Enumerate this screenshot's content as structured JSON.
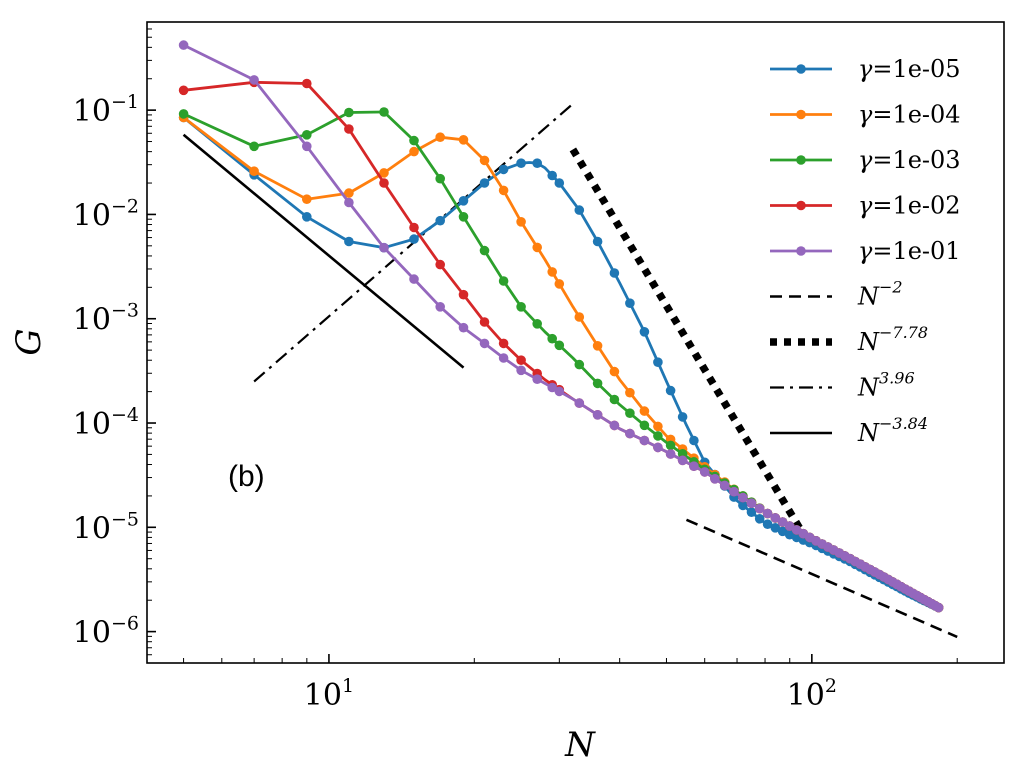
{
  "chart_data": {
    "type": "line",
    "xscale": "log",
    "yscale": "log",
    "xlabel": "N",
    "ylabel": "G",
    "xlim": [
      4.2,
      250
    ],
    "ylim": [
      5e-07,
      0.7
    ],
    "x_ticks": [
      {
        "value": 10,
        "base": "10",
        "exp": "1"
      },
      {
        "value": 100,
        "base": "10",
        "exp": "2"
      }
    ],
    "y_ticks": [
      {
        "value": 0.1,
        "base": "10",
        "exp": "−1"
      },
      {
        "value": 0.01,
        "base": "10",
        "exp": "−2"
      },
      {
        "value": 0.001,
        "base": "10",
        "exp": "−3"
      },
      {
        "value": 0.0001,
        "base": "10",
        "exp": "−4"
      },
      {
        "value": 1e-05,
        "base": "10",
        "exp": "−5"
      },
      {
        "value": 1e-06,
        "base": "10",
        "exp": "−6"
      }
    ],
    "annotation": "(b)",
    "series": [
      {
        "name": "γ=1e-05",
        "label_symbol": "γ",
        "label_value": "=1e-05",
        "color": "#1f77b4",
        "points": [
          [
            5,
            0.085
          ],
          [
            7,
            0.024
          ],
          [
            9,
            0.0095
          ],
          [
            11,
            0.0055
          ],
          [
            13,
            0.0048
          ],
          [
            15,
            0.0058
          ],
          [
            17,
            0.0087
          ],
          [
            19,
            0.0135
          ],
          [
            21,
            0.02
          ],
          [
            23,
            0.027
          ],
          [
            25,
            0.031
          ],
          [
            26,
            0.0315
          ],
          [
            27,
            0.031
          ],
          [
            28,
            0.028
          ],
          [
            30,
            0.02
          ],
          [
            33,
            0.011
          ],
          [
            36,
            0.0055
          ],
          [
            40,
            0.0022
          ],
          [
            45,
            0.00075
          ],
          [
            50,
            0.00025
          ],
          [
            55,
            9.5e-05
          ],
          [
            60,
            4.2e-05
          ],
          [
            70,
            1.8e-05
          ],
          [
            80,
            1.1e-05
          ],
          [
            90,
            8.5e-06
          ],
          [
            100,
            7e-06
          ],
          [
            120,
            4.7e-06
          ],
          [
            140,
            3.2e-06
          ],
          [
            160,
            2.3e-06
          ],
          [
            183,
            1.7e-06
          ]
        ]
      },
      {
        "name": "γ=1e-04",
        "label_symbol": "γ",
        "label_value": "=1e-04",
        "color": "#ff7f0e",
        "points": [
          [
            5,
            0.085
          ],
          [
            7,
            0.026
          ],
          [
            9,
            0.014
          ],
          [
            11,
            0.016
          ],
          [
            13,
            0.025
          ],
          [
            15,
            0.04
          ],
          [
            17,
            0.055
          ],
          [
            19,
            0.052
          ],
          [
            21,
            0.033
          ],
          [
            23,
            0.017
          ],
          [
            25,
            0.0085
          ],
          [
            28,
            0.0037
          ],
          [
            32,
            0.0013
          ],
          [
            36,
            0.00055
          ],
          [
            40,
            0.00026
          ],
          [
            45,
            0.00013
          ],
          [
            50,
            7.5e-05
          ],
          [
            60,
            3.8e-05
          ],
          [
            70,
            2.2e-05
          ],
          [
            80,
            1.4e-05
          ],
          [
            100,
            7.8e-06
          ],
          [
            120,
            5e-06
          ],
          [
            140,
            3.4e-06
          ],
          [
            160,
            2.4e-06
          ],
          [
            183,
            1.7e-06
          ]
        ]
      },
      {
        "name": "γ=1e-03",
        "label_symbol": "γ",
        "label_value": "=1e-03",
        "color": "#2ca02c",
        "points": [
          [
            5,
            0.092
          ],
          [
            7,
            0.045
          ],
          [
            9,
            0.058
          ],
          [
            11,
            0.095
          ],
          [
            13,
            0.096
          ],
          [
            15,
            0.051
          ],
          [
            17,
            0.022
          ],
          [
            19,
            0.0095
          ],
          [
            21,
            0.0045
          ],
          [
            23,
            0.0023
          ],
          [
            25,
            0.0013
          ],
          [
            28,
            0.00075
          ],
          [
            32,
            0.00042
          ],
          [
            36,
            0.00024
          ],
          [
            40,
            0.00015
          ],
          [
            45,
            9.5e-05
          ],
          [
            50,
            6.5e-05
          ],
          [
            60,
            3.6e-05
          ],
          [
            70,
            2.2e-05
          ],
          [
            80,
            1.4e-05
          ],
          [
            100,
            7.8e-06
          ],
          [
            120,
            5e-06
          ],
          [
            140,
            3.4e-06
          ],
          [
            160,
            2.4e-06
          ],
          [
            183,
            1.7e-06
          ]
        ]
      },
      {
        "name": "γ=1e-02",
        "label_symbol": "γ",
        "label_value": "=1e-02",
        "color": "#d62728",
        "points": [
          [
            5,
            0.155
          ],
          [
            7,
            0.185
          ],
          [
            9,
            0.18
          ],
          [
            11,
            0.066
          ],
          [
            13,
            0.02
          ],
          [
            15,
            0.0075
          ],
          [
            17,
            0.0033
          ],
          [
            19,
            0.0017
          ],
          [
            21,
            0.00093
          ],
          [
            23,
            0.00058
          ],
          [
            25,
            0.0004
          ],
          [
            28,
            0.00026
          ],
          [
            32,
            0.00017
          ],
          [
            36,
            0.00012
          ],
          [
            40,
            8.8e-05
          ],
          [
            45,
            6.8e-05
          ],
          [
            50,
            5.3e-05
          ],
          [
            60,
            3.4e-05
          ],
          [
            70,
            2.1e-05
          ],
          [
            80,
            1.4e-05
          ],
          [
            100,
            7.8e-06
          ],
          [
            120,
            5e-06
          ],
          [
            140,
            3.4e-06
          ],
          [
            160,
            2.4e-06
          ],
          [
            183,
            1.7e-06
          ]
        ]
      },
      {
        "name": "γ=1e-01",
        "label_symbol": "γ",
        "label_value": "=1e-01",
        "color": "#9467bd",
        "points": [
          [
            5,
            0.42
          ],
          [
            7,
            0.195
          ],
          [
            9,
            0.045
          ],
          [
            11,
            0.013
          ],
          [
            13,
            0.0048
          ],
          [
            15,
            0.0024
          ],
          [
            17,
            0.0013
          ],
          [
            19,
            0.00082
          ],
          [
            21,
            0.00058
          ],
          [
            23,
            0.00042
          ],
          [
            25,
            0.00032
          ],
          [
            28,
            0.00024
          ],
          [
            32,
            0.00017
          ],
          [
            36,
            0.00012
          ],
          [
            40,
            8.8e-05
          ],
          [
            45,
            6.8e-05
          ],
          [
            50,
            5.3e-05
          ],
          [
            60,
            3.4e-05
          ],
          [
            70,
            2.1e-05
          ],
          [
            80,
            1.4e-05
          ],
          [
            100,
            7.8e-06
          ],
          [
            120,
            5e-06
          ],
          [
            140,
            3.4e-06
          ],
          [
            160,
            2.4e-06
          ],
          [
            183,
            1.7e-06
          ]
        ]
      }
    ],
    "reference_lines": [
      {
        "name": "N^-2",
        "base": "N",
        "exp": "−2",
        "style": "dashed",
        "points": [
          [
            55,
            1.18e-05
          ],
          [
            200,
            8.9e-07
          ]
        ]
      },
      {
        "name": "N^-7.78",
        "base": "N",
        "exp": "−7.78",
        "style": "dotted",
        "points": [
          [
            32,
            0.042
          ],
          [
            95,
            9.3e-06
          ]
        ]
      },
      {
        "name": "N^3.96",
        "base": "N",
        "exp": "3.96",
        "style": "dashdot",
        "points": [
          [
            7,
            0.00025
          ],
          [
            32,
            0.115
          ]
        ]
      },
      {
        "name": "N^-3.84",
        "base": "N",
        "exp": "−3.84",
        "style": "solid",
        "points": [
          [
            5,
            0.058
          ],
          [
            19,
            0.00034
          ]
        ]
      }
    ]
  }
}
